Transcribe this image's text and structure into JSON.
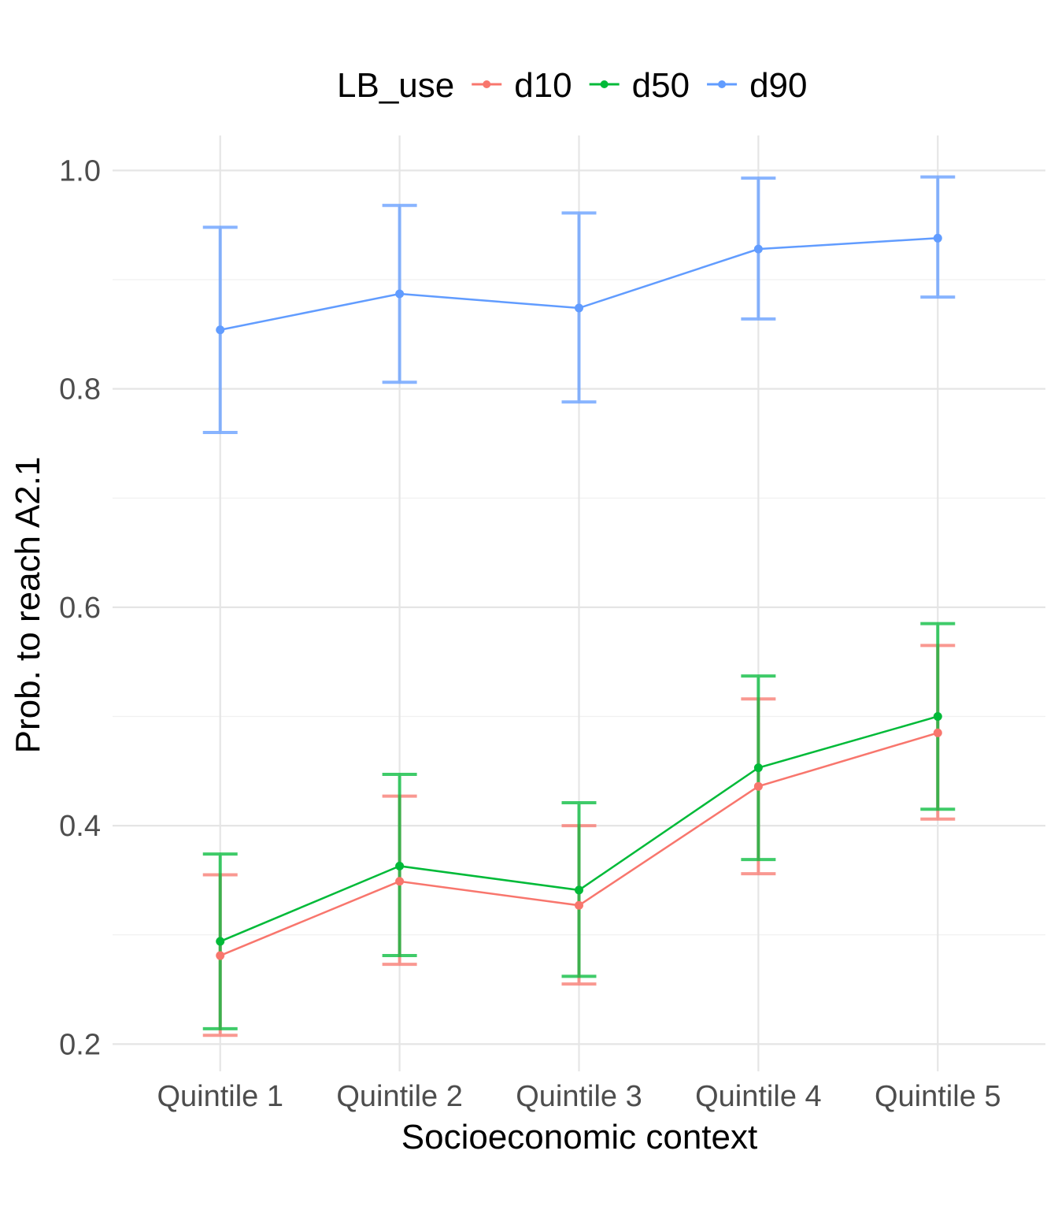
{
  "chart_data": {
    "type": "line",
    "xlabel": "Socioeconomic context",
    "ylabel": "Prob. to reach A2.1",
    "categories": [
      "Quintile 1",
      "Quintile 2",
      "Quintile 3",
      "Quintile 4",
      "Quintile 5"
    ],
    "ylim": [
      0.175,
      1.032
    ],
    "yticks": [
      0.2,
      0.4,
      0.6,
      0.8,
      1.0
    ],
    "ytick_labels": [
      "0.2",
      "0.4",
      "0.6",
      "0.8",
      "1.0"
    ],
    "grid": true,
    "legend": {
      "title": "LB_use",
      "position": "top"
    },
    "series": [
      {
        "name": "d10",
        "color": "#F8766D",
        "values": [
          0.281,
          0.349,
          0.327,
          0.436,
          0.485
        ],
        "lower": [
          0.208,
          0.273,
          0.255,
          0.356,
          0.406
        ],
        "upper": [
          0.355,
          0.427,
          0.4,
          0.516,
          0.565
        ]
      },
      {
        "name": "d50",
        "color": "#00BA38",
        "values": [
          0.294,
          0.363,
          0.341,
          0.453,
          0.5
        ],
        "lower": [
          0.214,
          0.281,
          0.262,
          0.369,
          0.415
        ],
        "upper": [
          0.374,
          0.447,
          0.421,
          0.537,
          0.585
        ]
      },
      {
        "name": "d90",
        "color": "#619CFF",
        "values": [
          0.854,
          0.887,
          0.874,
          0.928,
          0.938
        ],
        "lower": [
          0.76,
          0.806,
          0.788,
          0.864,
          0.884
        ],
        "upper": [
          0.948,
          0.968,
          0.961,
          0.993,
          0.994
        ]
      }
    ]
  }
}
